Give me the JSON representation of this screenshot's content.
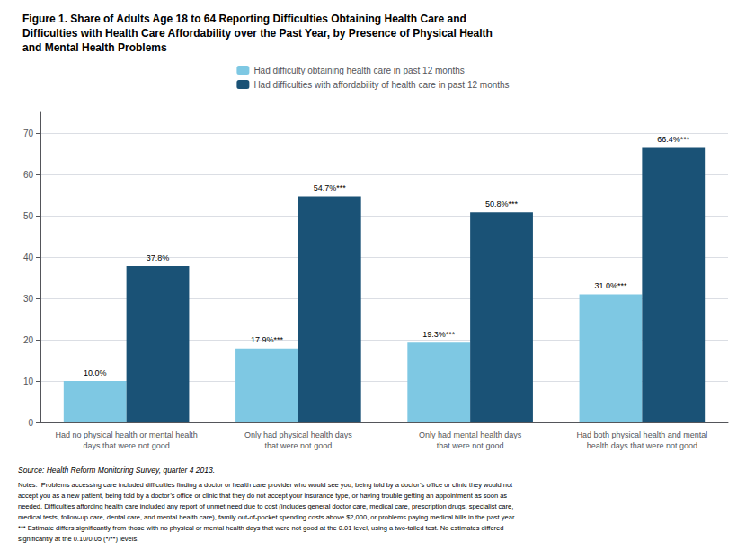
{
  "chart_data": {
    "type": "bar",
    "title": "Figure 1. Share of Adults Age 18 to 64 Reporting Difficulties Obtaining Health Care and\nDifficulties with Health Care Affordability over the Past Year, by Presence of Physical Health\nand Mental Health Problems",
    "categories": [
      "Had no physical health or mental health\ndays that were not good",
      "Only had physical health days\nthat were not good",
      "Only had mental health days\nthat were not good",
      "Had both physical health and mental\nhealth days that were not good"
    ],
    "series": [
      {
        "name": "Had difficulty obtaining health care in past 12 months",
        "color": "#7EC8E3",
        "values": [
          10.0,
          17.9,
          19.3,
          31.0
        ],
        "value_labels": [
          "10.0%",
          "17.9%***",
          "19.3%***",
          "31.0%***"
        ]
      },
      {
        "name": "Had difficulties with affordability of health care in past 12 months",
        "color": "#1A5276",
        "values": [
          37.8,
          54.7,
          50.8,
          66.4
        ],
        "value_labels": [
          "37.8%",
          "54.7%***",
          "50.8%***",
          "66.4%***"
        ]
      }
    ],
    "ylim": [
      0,
      75
    ],
    "yticks": [
      0,
      10,
      20,
      30,
      40,
      50,
      60,
      70
    ],
    "grid": true,
    "legend": "top",
    "data_labels": true,
    "source": "Source: Health Reform Monitoring Survey, quarter 4 2013.",
    "notes": "Notes:  Problems accessing care included difficulties finding a doctor or health care provider who would see you, being told by a doctor’s office or clinic they would not\naccept you as a new patient, being told by a doctor’s office or clinic that they do not accept your insurance type, or having trouble getting an appointment as soon as\nneeded. Difficulties affording health care included any report of unmet need due to cost (includes general doctor care, medical care, prescription drugs, specialist care,\nmedical tests, follow-up care, dental care, and mental health care), family out-of-pocket spending costs above $2,000, or problems paying medical bills in the past year.\n*** Estimate differs significantly from those with no physical or mental health days that were not good at the 0.01 level, using a two-tailed test. No estimates differed\nsignificantly at the 0.10/0.05 (*/**) levels."
  }
}
